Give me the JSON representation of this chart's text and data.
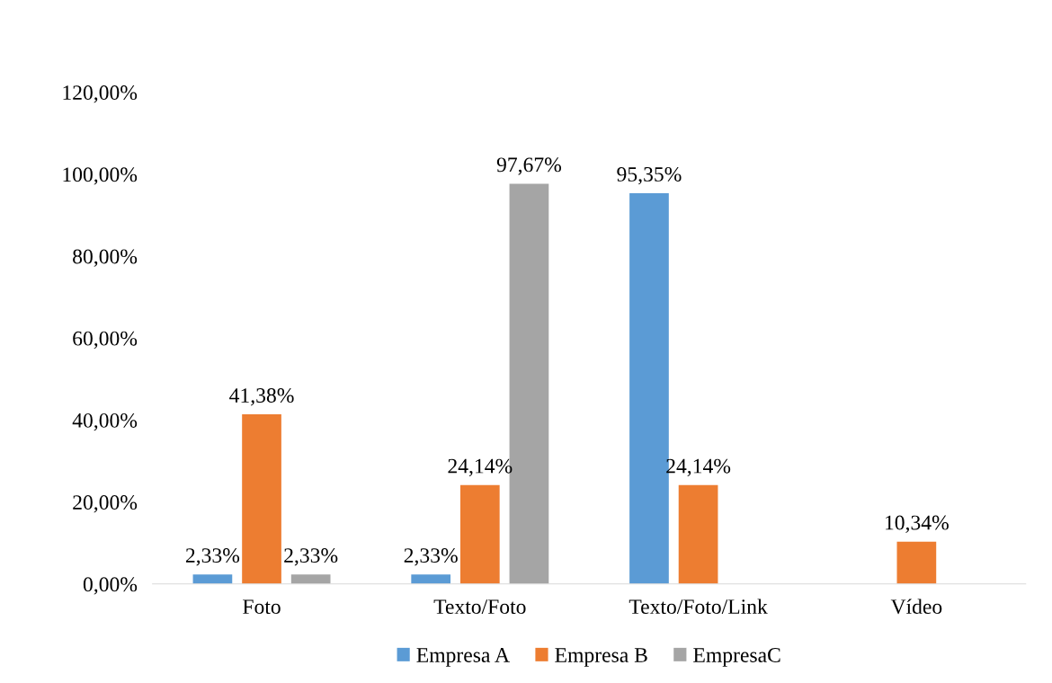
{
  "chart_data": {
    "type": "bar",
    "categories": [
      "Foto",
      "Texto/Foto",
      "Texto/Foto/Link",
      "Vídeo"
    ],
    "series": [
      {
        "name": "Empresa A",
        "color": "#5b9bd5",
        "values": [
          2.33,
          2.33,
          95.35,
          null
        ],
        "value_labels": [
          "2,33%",
          "2,33%",
          "95,35%",
          null
        ]
      },
      {
        "name": "Empresa B",
        "color": "#ed7d31",
        "values": [
          41.38,
          24.14,
          24.14,
          10.34
        ],
        "value_labels": [
          "41,38%",
          "24,14%",
          "24,14%",
          "10,34%"
        ]
      },
      {
        "name": "EmpresaC",
        "color": "#a5a5a5",
        "values": [
          2.33,
          97.67,
          null,
          null
        ],
        "value_labels": [
          "2,33%",
          "97,67%",
          null,
          null
        ]
      }
    ],
    "ylim": [
      0,
      120
    ],
    "yticks": [
      {
        "value": 0,
        "label": "0,00%"
      },
      {
        "value": 20,
        "label": "20,00%"
      },
      {
        "value": 40,
        "label": "40,00%"
      },
      {
        "value": 60,
        "label": "60,00%"
      },
      {
        "value": 80,
        "label": "80,00%"
      },
      {
        "value": 100,
        "label": "100,00%"
      },
      {
        "value": 120,
        "label": "120,00%"
      }
    ],
    "grid": false,
    "legend": "bottom"
  }
}
